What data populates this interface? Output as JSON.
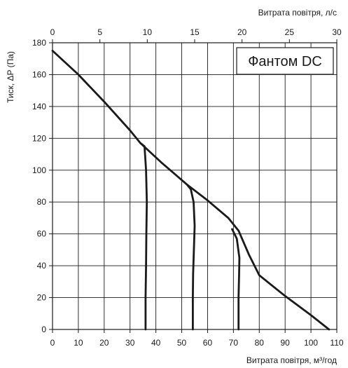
{
  "chart_data": {
    "type": "line",
    "title": "Фантом DC",
    "xlabel": "Витрата повітря, м³/год",
    "ylabel": "Тиск, ΔP (Па)",
    "x2label": "Витрата повітря, л/с",
    "xlim": [
      0,
      110
    ],
    "ylim": [
      0,
      180
    ],
    "x2lim": [
      0,
      30
    ],
    "x_ticks": [
      0,
      10,
      20,
      30,
      40,
      50,
      60,
      70,
      80,
      90,
      100,
      110
    ],
    "y_ticks": [
      0,
      20,
      40,
      60,
      80,
      100,
      120,
      140,
      160,
      180
    ],
    "x2_ticks": [
      0,
      5,
      10,
      15,
      20,
      25,
      30
    ],
    "grid": true,
    "legend_position": "top-right",
    "line_color": "#1a1a1a",
    "series": [
      {
        "points": [
          [
            0,
            175
          ],
          [
            10,
            160
          ],
          [
            20,
            143
          ],
          [
            30,
            125
          ],
          [
            34,
            117
          ],
          [
            42,
            105
          ],
          [
            52,
            91
          ],
          [
            60,
            81
          ],
          [
            68,
            70
          ],
          [
            72,
            62
          ],
          [
            76,
            47
          ],
          [
            80,
            34
          ],
          [
            90,
            21
          ],
          [
            100,
            9
          ],
          [
            107,
            0
          ]
        ]
      },
      {
        "points": [
          [
            34,
            117
          ],
          [
            35.6,
            115
          ],
          [
            36.2,
            100
          ],
          [
            36.5,
            80
          ],
          [
            36.3,
            60
          ],
          [
            36.2,
            40
          ],
          [
            36.0,
            20
          ],
          [
            36.0,
            0
          ]
        ]
      },
      {
        "points": [
          [
            52,
            91
          ],
          [
            53.5,
            88
          ],
          [
            54.6,
            80
          ],
          [
            55.0,
            65
          ],
          [
            54.7,
            50
          ],
          [
            54.4,
            35
          ],
          [
            54.3,
            20
          ],
          [
            54.3,
            0
          ]
        ]
      },
      {
        "points": [
          [
            69.5,
            63
          ],
          [
            71.3,
            57
          ],
          [
            72.3,
            45
          ],
          [
            72.2,
            35
          ],
          [
            72.0,
            20
          ],
          [
            72.0,
            0
          ]
        ]
      }
    ]
  }
}
